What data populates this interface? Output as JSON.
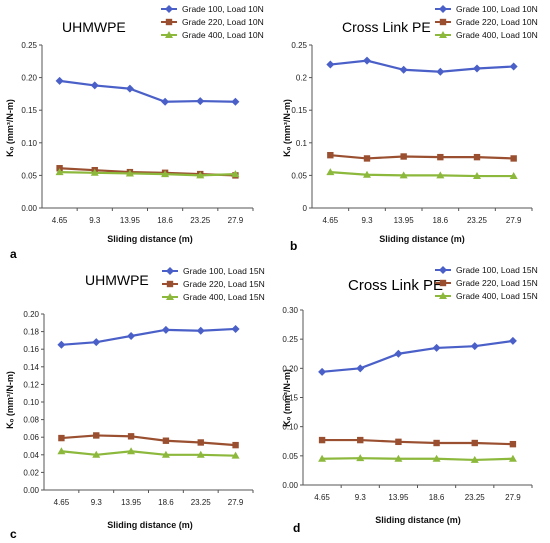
{
  "colors": {
    "grade100": "#4a60c8",
    "grade220": "#9a5030",
    "grade400": "#8cb83c"
  },
  "chart_data": [
    {
      "type": "line",
      "panel_letter": "a",
      "title": "UHMWPE",
      "xlabel": "Sliding distance (m)",
      "ylabel": "Kₒ (mm³/N-m)",
      "categories": [
        "4.65",
        "9.3",
        "13.95",
        "18.6",
        "23.25",
        "27.9"
      ],
      "ylim": [
        0,
        0.25
      ],
      "yticks": [
        "0.00",
        "0.05",
        "0.10",
        "0.15",
        "0.20",
        "0.25"
      ],
      "legend_position": "top-right",
      "grid": false,
      "series": [
        {
          "name": "Grade 100, Load 10N",
          "values": [
            0.195,
            0.188,
            0.183,
            0.163,
            0.164,
            0.163
          ]
        },
        {
          "name": "Grade 220, Load 10N",
          "values": [
            0.061,
            0.058,
            0.055,
            0.054,
            0.052,
            0.05
          ]
        },
        {
          "name": "Grade 400, Load 10N",
          "values": [
            0.055,
            0.054,
            0.053,
            0.052,
            0.05,
            0.052
          ]
        }
      ]
    },
    {
      "type": "line",
      "panel_letter": "b",
      "title": "Cross Link PE",
      "xlabel": "Sliding distance (m)",
      "ylabel": "Kₒ (mm³/N-m)",
      "categories": [
        "4.65",
        "9.3",
        "13.95",
        "18.6",
        "23.25",
        "27.9"
      ],
      "ylim": [
        0,
        0.25
      ],
      "yticks": [
        "0",
        "0.05",
        "0.1",
        "0.15",
        "0.2",
        "0.25"
      ],
      "legend_position": "top-right",
      "grid": false,
      "series": [
        {
          "name": "Grade 100, Load 10N",
          "values": [
            0.22,
            0.226,
            0.212,
            0.209,
            0.214,
            0.217
          ]
        },
        {
          "name": "Grade 220, Load 10N",
          "values": [
            0.081,
            0.076,
            0.079,
            0.078,
            0.078,
            0.076
          ]
        },
        {
          "name": "Grade 400, Load 10N",
          "values": [
            0.055,
            0.051,
            0.05,
            0.05,
            0.049,
            0.049
          ]
        }
      ]
    },
    {
      "type": "line",
      "panel_letter": "c",
      "title": "UHMWPE",
      "xlabel": "Sliding distance (m)",
      "ylabel": "Kₒ (mm³/N-m)",
      "categories": [
        "4.65",
        "9.3",
        "13.95",
        "18.6",
        "23.25",
        "27.9"
      ],
      "ylim": [
        0,
        0.2
      ],
      "yticks": [
        "0.00",
        "0.02",
        "0.04",
        "0.06",
        "0.08",
        "0.10",
        "0.12",
        "0.14",
        "0.16",
        "0.18",
        "0.20"
      ],
      "legend_position": "top-right",
      "grid": false,
      "series": [
        {
          "name": "Grade 100, Load 15N",
          "values": [
            0.165,
            0.168,
            0.175,
            0.182,
            0.181,
            0.183
          ]
        },
        {
          "name": "Grade 220, Load 15N",
          "values": [
            0.059,
            0.062,
            0.061,
            0.056,
            0.054,
            0.051
          ]
        },
        {
          "name": "Grade 400, Load 15N",
          "values": [
            0.044,
            0.04,
            0.044,
            0.04,
            0.04,
            0.039
          ]
        }
      ]
    },
    {
      "type": "line",
      "panel_letter": "d",
      "title": "Cross Link PE",
      "xlabel": "Sliding distance (m)",
      "ylabel": "Kₒ (mm³/N-m)",
      "categories": [
        "4.65",
        "9.3",
        "13.95",
        "18.6",
        "23.25",
        "27.9"
      ],
      "ylim": [
        0,
        0.3
      ],
      "yticks": [
        "0.00",
        "0.05",
        "0.10",
        "0.15",
        "0.20",
        "0.25",
        "0.30"
      ],
      "legend_position": "top-right",
      "grid": false,
      "series": [
        {
          "name": "Grade 100, Load 15N",
          "values": [
            0.194,
            0.2,
            0.225,
            0.235,
            0.238,
            0.247
          ]
        },
        {
          "name": "Grade 220, Load 15N",
          "values": [
            0.077,
            0.077,
            0.074,
            0.072,
            0.072,
            0.07
          ]
        },
        {
          "name": "Grade 400, Load 15N",
          "values": [
            0.045,
            0.046,
            0.045,
            0.045,
            0.043,
            0.045
          ]
        }
      ]
    }
  ]
}
